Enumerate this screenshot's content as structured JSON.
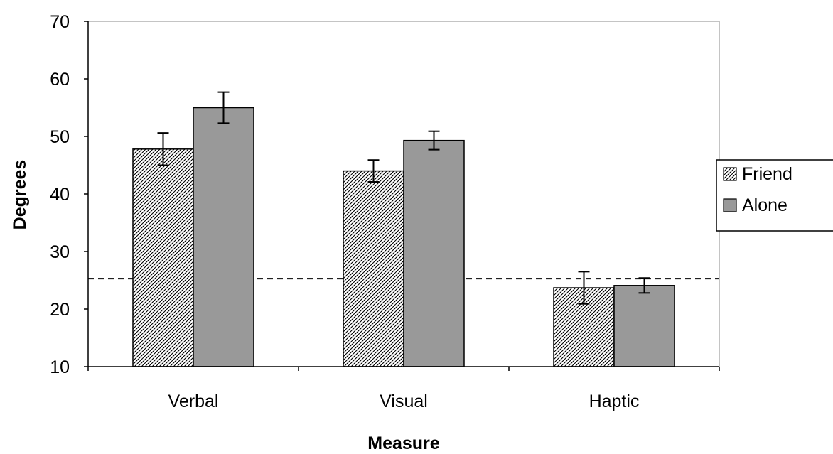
{
  "chart_data": {
    "type": "bar",
    "title": "",
    "xlabel": "Measure",
    "ylabel": "Degrees",
    "categories": [
      "Verbal",
      "Visual",
      "Haptic"
    ],
    "ylim": [
      10,
      70
    ],
    "yticks": [
      10,
      20,
      30,
      40,
      50,
      60,
      70
    ],
    "grid": false,
    "legend_position": "right",
    "reference_line": {
      "y": 25.3,
      "style": "dashed"
    },
    "series": [
      {
        "name": "Friend",
        "pattern": "diagonal-hatch",
        "color": "#ffffff",
        "values": [
          47.8,
          44.0,
          23.7
        ],
        "error": [
          2.8,
          1.9,
          2.8
        ]
      },
      {
        "name": "Alone",
        "pattern": "solid",
        "color": "#999999",
        "values": [
          55.0,
          49.3,
          24.1
        ],
        "error": [
          2.7,
          1.6,
          1.3
        ]
      }
    ]
  }
}
